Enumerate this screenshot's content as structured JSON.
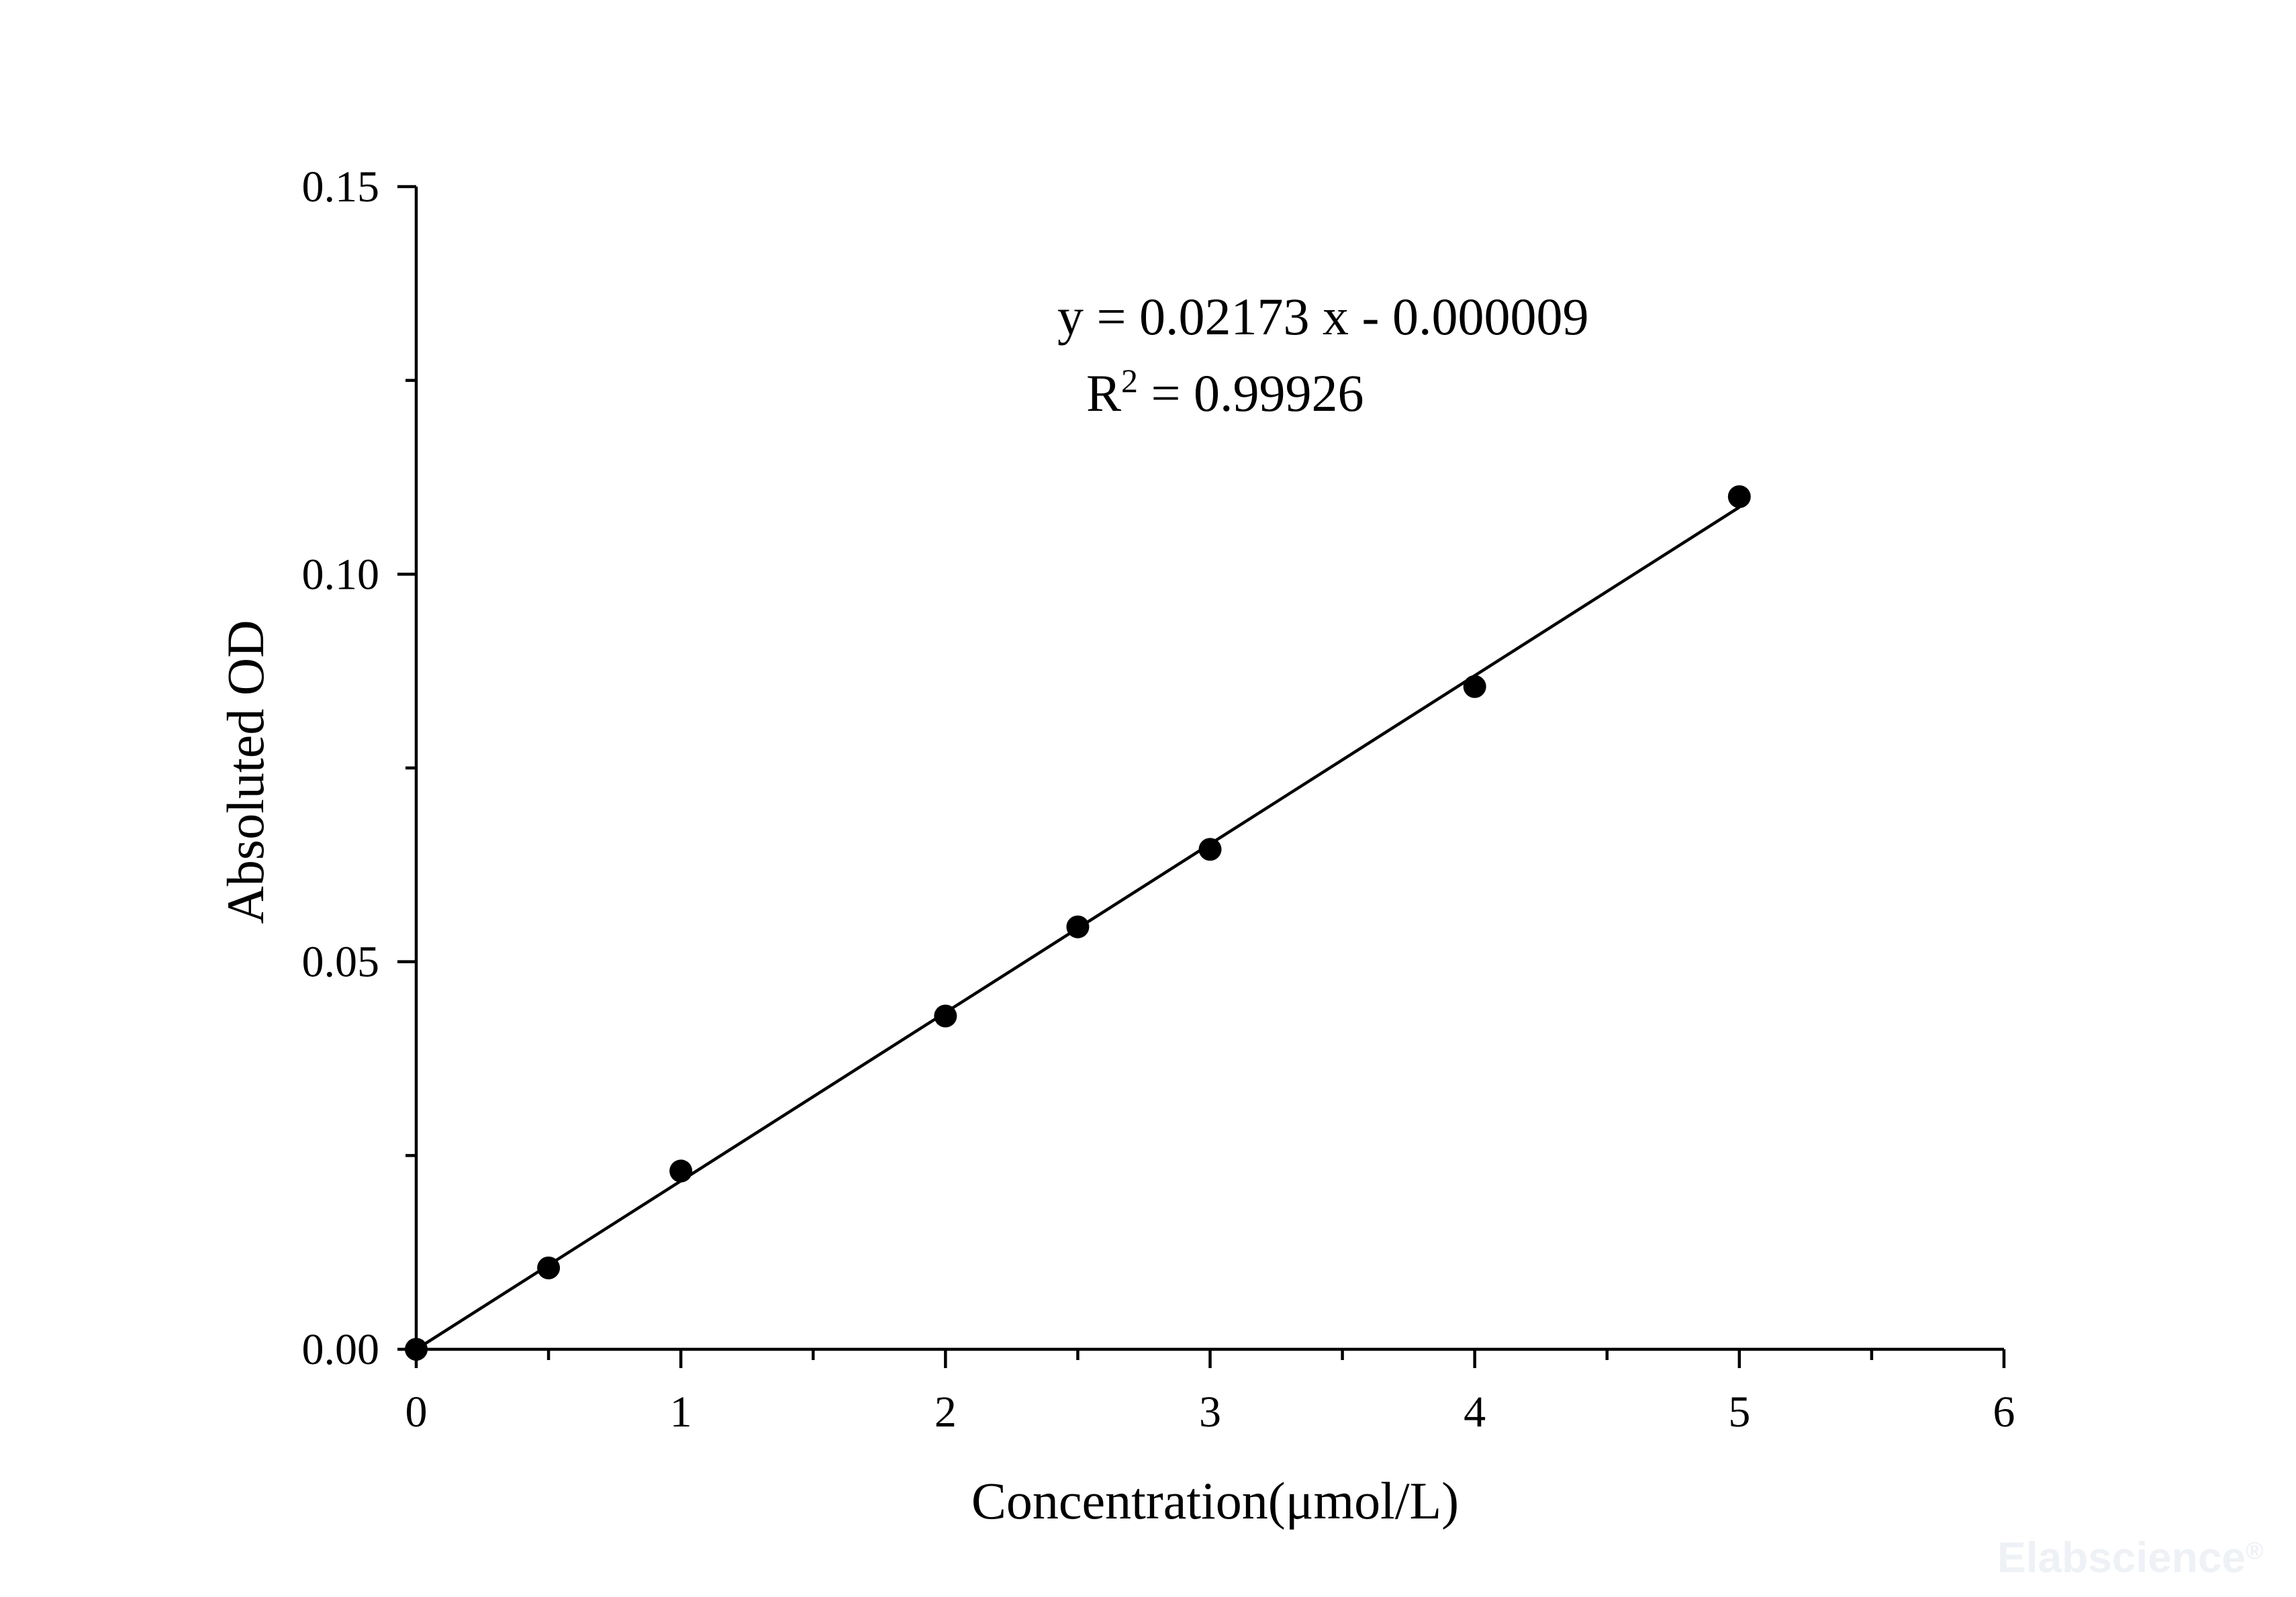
{
  "chart_data": {
    "type": "scatter",
    "title": "",
    "xlabel": "Concentration(μmol/L)",
    "ylabel": "Absoluted OD",
    "xlim": [
      0,
      6
    ],
    "ylim": [
      0,
      0.15
    ],
    "x_ticks": [
      "0",
      "1",
      "2",
      "3",
      "4",
      "5",
      "6"
    ],
    "y_ticks": [
      "0.00",
      "0.05",
      "0.10",
      "0.15"
    ],
    "grid": false,
    "series": [
      {
        "x": [
          0,
          0.5,
          1,
          2,
          2.5,
          3,
          4,
          5
        ],
        "y": [
          0.0,
          0.0105,
          0.023,
          0.043,
          0.0545,
          0.0645,
          0.0855,
          0.11
        ]
      }
    ],
    "fit": {
      "slope": 0.02173,
      "intercept": -9e-06,
      "x_range": [
        0,
        5
      ],
      "equation_text": "y = 0.02173 x - 0.000009",
      "r2_prefix": "R",
      "r2_sup": "2",
      "r2_value": " = 0.99926"
    },
    "marker_color": "#000000",
    "line_color": "#000000"
  },
  "watermark": {
    "text": "Elabscience",
    "mark": "®"
  }
}
